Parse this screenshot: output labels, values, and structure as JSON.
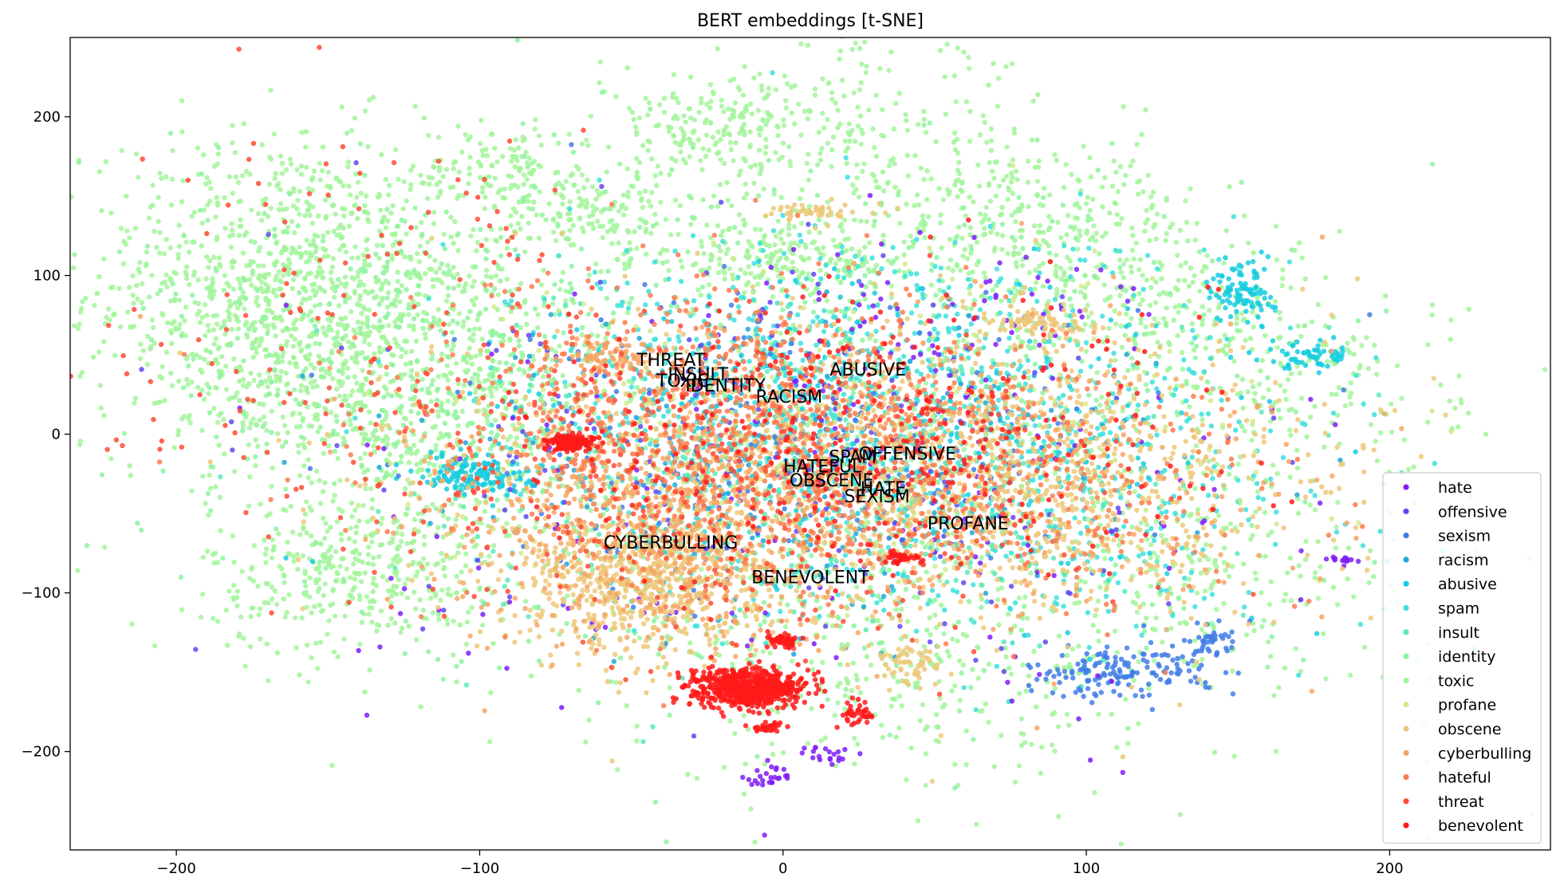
{
  "chart_data": {
    "type": "scatter",
    "title": "BERT embeddings [t-SNE]",
    "xlabel": "",
    "ylabel": "",
    "xlim": [
      -235,
      253
    ],
    "ylim": [
      -262,
      250
    ],
    "x_ticks": [
      -200,
      -100,
      0,
      100,
      200
    ],
    "y_ticks": [
      -200,
      -100,
      0,
      100,
      200
    ],
    "x_tick_labels": [
      "−200",
      "−100",
      "0",
      "100",
      "200"
    ],
    "y_tick_labels": [
      "−200",
      "−100",
      "0",
      "100",
      "200"
    ],
    "grid": false,
    "legend_position": "lower-right",
    "series": [
      {
        "name": "hate",
        "color": "#7e1df7"
      },
      {
        "name": "offensive",
        "color": "#6047f5"
      },
      {
        "name": "sexism",
        "color": "#3f7ce8"
      },
      {
        "name": "racism",
        "color": "#20a6dc"
      },
      {
        "name": "abusive",
        "color": "#18cde0"
      },
      {
        "name": "spam",
        "color": "#3ce0dc"
      },
      {
        "name": "insult",
        "color": "#5aeab7"
      },
      {
        "name": "identity",
        "color": "#8ff3a0"
      },
      {
        "name": "toxic",
        "color": "#a3f59b"
      },
      {
        "name": "profane",
        "color": "#d5ea8c"
      },
      {
        "name": "obscene",
        "color": "#edc87a"
      },
      {
        "name": "cyberbulling",
        "color": "#f7a463"
      },
      {
        "name": "hateful",
        "color": "#fb7b4e"
      },
      {
        "name": "threat",
        "color": "#fe4a34"
      },
      {
        "name": "benevolent",
        "color": "#ff1a1a"
      }
    ],
    "clusters": [
      {
        "series": "toxic",
        "x": -165,
        "y": 90,
        "sx": 32,
        "sy": 50,
        "n": 1000
      },
      {
        "series": "toxic",
        "x": -120,
        "y": 30,
        "sx": 35,
        "sy": 55,
        "n": 800
      },
      {
        "series": "toxic",
        "x": -140,
        "y": -90,
        "sx": 25,
        "sy": 25,
        "n": 350
      },
      {
        "series": "toxic",
        "x": -90,
        "y": 165,
        "sx": 15,
        "sy": 15,
        "n": 120
      },
      {
        "series": "toxic",
        "x": -60,
        "y": 140,
        "sx": 20,
        "sy": 15,
        "n": 150
      },
      {
        "series": "toxic",
        "x": -20,
        "y": 195,
        "sx": 20,
        "sy": 15,
        "n": 200
      },
      {
        "series": "toxic",
        "x": 0,
        "y": 110,
        "sx": 25,
        "sy": 12,
        "n": 200
      },
      {
        "series": "toxic",
        "x": 30,
        "y": 160,
        "sx": 30,
        "sy": 45,
        "n": 300
      },
      {
        "series": "toxic",
        "x": 90,
        "y": 130,
        "sx": 25,
        "sy": 30,
        "n": 250
      },
      {
        "series": "toxic",
        "x": 120,
        "y": 80,
        "sx": 30,
        "sy": 30,
        "n": 250
      },
      {
        "series": "toxic",
        "x": 175,
        "y": 30,
        "sx": 25,
        "sy": 30,
        "n": 150
      },
      {
        "series": "toxic",
        "x": 140,
        "y": -90,
        "sx": 30,
        "sy": 30,
        "n": 150
      },
      {
        "series": "toxic",
        "x": 40,
        "y": -160,
        "sx": 40,
        "sy": 30,
        "n": 200
      },
      {
        "series": "toxic",
        "x": 60,
        "y": -90,
        "sx": 80,
        "sy": 60,
        "n": 350
      },
      {
        "series": "identity",
        "x": -120,
        "y": 50,
        "sx": 45,
        "sy": 60,
        "n": 400
      },
      {
        "series": "identity",
        "x": 50,
        "y": 60,
        "sx": 60,
        "sy": 60,
        "n": 300
      },
      {
        "series": "identity",
        "x": 10,
        "y": -80,
        "sx": 70,
        "sy": 50,
        "n": 250
      },
      {
        "series": "spam",
        "x": 20,
        "y": 20,
        "sx": 55,
        "sy": 55,
        "n": 800
      },
      {
        "series": "spam",
        "x": 70,
        "y": -30,
        "sx": 60,
        "sy": 50,
        "n": 500
      },
      {
        "series": "insult",
        "x": 10,
        "y": -30,
        "sx": 60,
        "sy": 50,
        "n": 300
      },
      {
        "series": "abusive",
        "x": -102,
        "y": -25,
        "sx": 9,
        "sy": 6,
        "n": 150
      },
      {
        "series": "abusive",
        "x": 152,
        "y": 90,
        "sx": 5,
        "sy": 10,
        "n": 100
      },
      {
        "series": "abusive",
        "x": 175,
        "y": 50,
        "sx": 8,
        "sy": 4,
        "n": 60
      },
      {
        "series": "abusive",
        "x": 30,
        "y": 0,
        "sx": 60,
        "sy": 50,
        "n": 300
      },
      {
        "series": "racism",
        "x": 0,
        "y": -20,
        "sx": 60,
        "sy": 50,
        "n": 250
      },
      {
        "series": "sexism",
        "x": 110,
        "y": -150,
        "sx": 15,
        "sy": 8,
        "n": 150
      },
      {
        "series": "sexism",
        "x": 140,
        "y": -130,
        "sx": 5,
        "sy": 5,
        "n": 40
      },
      {
        "series": "sexism",
        "x": 0,
        "y": -10,
        "sx": 60,
        "sy": 50,
        "n": 200
      },
      {
        "series": "offensive",
        "x": 10,
        "y": -20,
        "sx": 70,
        "sy": 60,
        "n": 200
      },
      {
        "series": "hate",
        "x": 20,
        "y": -40,
        "sx": 80,
        "sy": 70,
        "n": 180
      },
      {
        "series": "hate",
        "x": 55,
        "y": 80,
        "sx": 35,
        "sy": 25,
        "n": 60
      },
      {
        "series": "hate",
        "x": -5,
        "y": -215,
        "sx": 4,
        "sy": 3,
        "n": 25
      },
      {
        "series": "hate",
        "x": 15,
        "y": -200,
        "sx": 4,
        "sy": 3,
        "n": 20
      },
      {
        "series": "hate",
        "x": 185,
        "y": -80,
        "sx": 3,
        "sy": 2,
        "n": 15
      },
      {
        "series": "profane",
        "x": 20,
        "y": -10,
        "sx": 70,
        "sy": 55,
        "n": 300
      },
      {
        "series": "obscene",
        "x": -45,
        "y": -95,
        "sx": 22,
        "sy": 22,
        "n": 600
      },
      {
        "series": "obscene",
        "x": 20,
        "y": -20,
        "sx": 70,
        "sy": 50,
        "n": 900
      },
      {
        "series": "obscene",
        "x": 90,
        "y": -30,
        "sx": 40,
        "sy": 40,
        "n": 500
      },
      {
        "series": "obscene",
        "x": 85,
        "y": 70,
        "sx": 8,
        "sy": 4,
        "n": 80
      },
      {
        "series": "obscene",
        "x": 40,
        "y": -145,
        "sx": 6,
        "sy": 7,
        "n": 60
      },
      {
        "series": "obscene",
        "x": 10,
        "y": 140,
        "sx": 10,
        "sy": 3,
        "n": 50
      },
      {
        "series": "cyberbulling",
        "x": -40,
        "y": -60,
        "sx": 30,
        "sy": 35,
        "n": 500
      },
      {
        "series": "cyberbulling",
        "x": 30,
        "y": -30,
        "sx": 70,
        "sy": 50,
        "n": 500
      },
      {
        "series": "cyberbulling",
        "x": -60,
        "y": 50,
        "sx": 10,
        "sy": 6,
        "n": 80
      },
      {
        "series": "hateful",
        "x": -20,
        "y": 0,
        "sx": 50,
        "sy": 50,
        "n": 800
      },
      {
        "series": "hateful",
        "x": 60,
        "y": -30,
        "sx": 50,
        "sy": 40,
        "n": 350
      },
      {
        "series": "threat",
        "x": -10,
        "y": -30,
        "sx": 60,
        "sy": 50,
        "n": 400
      },
      {
        "series": "threat",
        "x": -140,
        "y": 60,
        "sx": 40,
        "sy": 60,
        "n": 160
      },
      {
        "series": "benevolent",
        "x": -12,
        "y": -160,
        "sx": 9,
        "sy": 6,
        "n": 700
      },
      {
        "series": "benevolent",
        "x": -70,
        "y": -5,
        "sx": 4,
        "sy": 2.5,
        "n": 150
      },
      {
        "series": "benevolent",
        "x": 30,
        "y": 0,
        "sx": 55,
        "sy": 45,
        "n": 350
      },
      {
        "series": "benevolent",
        "x": 0,
        "y": -130,
        "sx": 3,
        "sy": 2,
        "n": 50
      },
      {
        "series": "benevolent",
        "x": 40,
        "y": -78,
        "sx": 3,
        "sy": 2,
        "n": 40
      },
      {
        "series": "benevolent",
        "x": -5,
        "y": -185,
        "sx": 3,
        "sy": 1.5,
        "n": 30
      },
      {
        "series": "benevolent",
        "x": 25,
        "y": -175,
        "sx": 4,
        "sy": 4,
        "n": 40
      }
    ],
    "annotations": [
      {
        "text": "THREAT",
        "x": -37,
        "y": 43
      },
      {
        "text": "INSULT",
        "x": -28,
        "y": 34
      },
      {
        "text": "TOXIC",
        "x": -33,
        "y": 30
      },
      {
        "text": "IDENTITY",
        "x": -19,
        "y": 27
      },
      {
        "text": "RACISM",
        "x": 2,
        "y": 20
      },
      {
        "text": "ABUSIVE",
        "x": 28,
        "y": 37
      },
      {
        "text": "OFFENSIVE",
        "x": 41,
        "y": -16
      },
      {
        "text": "SPAM",
        "x": 23,
        "y": -18
      },
      {
        "text": "HATEFUL",
        "x": 13,
        "y": -24
      },
      {
        "text": "OBSCENE",
        "x": 16,
        "y": -33
      },
      {
        "text": "HATE",
        "x": 33,
        "y": -38
      },
      {
        "text": "SEXISM",
        "x": 31,
        "y": -43
      },
      {
        "text": "PROFANE",
        "x": 61,
        "y": -60
      },
      {
        "text": "CYBERBULLING",
        "x": -37,
        "y": -72
      },
      {
        "text": "BENEVOLENT",
        "x": 9,
        "y": -94
      }
    ]
  }
}
